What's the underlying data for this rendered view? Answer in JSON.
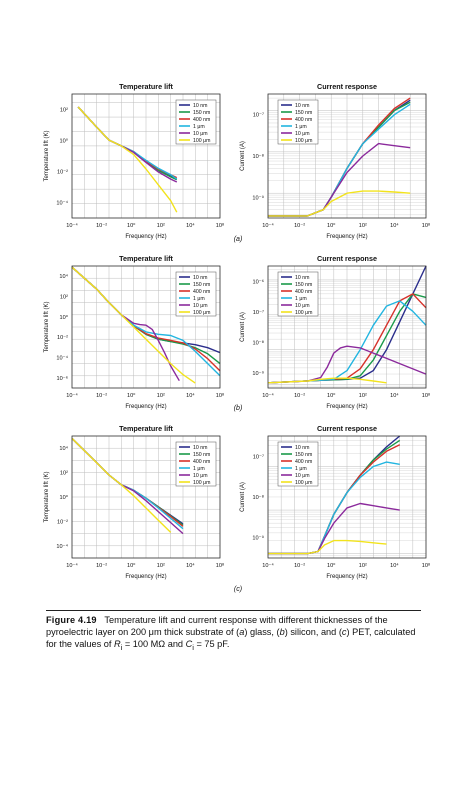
{
  "figure": {
    "caption_label": "Figure 4.19",
    "caption_parts": [
      "Temperature lift and current response with different thicknesses of the pyroelectric layer on 200 μm thick substrate of (",
      "a",
      ") glass, (",
      "b",
      ") silicon, and (",
      "c",
      ") PET, calculated for the values of ",
      "R",
      "i",
      " = 100 MΩ and ",
      "C",
      "i",
      " = 75 pF."
    ]
  },
  "legend_entries": [
    "10 nm",
    "150 nm",
    "400 nm",
    "1 μm",
    "10 μm",
    "100 μm"
  ],
  "series_colors": [
    "#2b2e8c",
    "#1a9a4a",
    "#d6322b",
    "#22b5e0",
    "#8b2a9c",
    "#f2e31c"
  ],
  "chart_data": [
    {
      "panel": "a",
      "side": "left",
      "type": "line",
      "title": "Temperature lift",
      "xlabel": "Frequency (Hz)",
      "ylabel": "Temperature lift (K)",
      "log_x": true,
      "log_y": true,
      "xlim": [
        -4,
        8
      ],
      "ylim": [
        -5,
        3.6
      ],
      "x_ticks": [
        "10⁻⁴",
        "10⁻²",
        "10⁰",
        "10²",
        "10⁴",
        "10⁸"
      ],
      "y_ticks": [
        "10⁻⁴",
        "10⁻²",
        "10⁰",
        "10²"
      ],
      "legend": "top-right",
      "grid": true,
      "series": [
        {
          "name": "10 nm",
          "x": [
            -3.5,
            -2,
            -1,
            0,
            1,
            2,
            3,
            4,
            4.5
          ],
          "y": [
            2.7,
            1.3,
            0.4,
            0,
            -0.4,
            -1.1,
            -1.7,
            -2.1,
            -2.3
          ]
        },
        {
          "name": "150 nm",
          "x": [
            -3.5,
            -2,
            -1,
            0,
            1,
            2,
            3,
            4,
            4.5
          ],
          "y": [
            2.7,
            1.3,
            0.4,
            0,
            -0.4,
            -1.1,
            -1.7,
            -2.15,
            -2.35
          ]
        },
        {
          "name": "400 nm",
          "x": [
            -3.5,
            -2,
            -1,
            0,
            1,
            2,
            3,
            4,
            4.5
          ],
          "y": [
            2.7,
            1.3,
            0.4,
            0,
            -0.4,
            -1.05,
            -1.6,
            -2.0,
            -2.2
          ]
        },
        {
          "name": "1 μm",
          "x": [
            -3.5,
            -2,
            -1,
            0,
            1,
            2,
            3,
            4,
            4.5
          ],
          "y": [
            2.7,
            1.3,
            0.4,
            0,
            -0.4,
            -1.0,
            -1.55,
            -2.0,
            -2.3
          ]
        },
        {
          "name": "10 μm",
          "x": [
            -3.5,
            -2,
            -1,
            0,
            1,
            2,
            3,
            4,
            4.5
          ],
          "y": [
            2.7,
            1.3,
            0.4,
            0,
            -0.45,
            -1.15,
            -1.8,
            -2.3,
            -2.5
          ]
        },
        {
          "name": "100 μm",
          "x": [
            -3.5,
            -2,
            -1,
            0,
            1,
            2,
            3,
            4,
            4.5
          ],
          "y": [
            2.7,
            1.3,
            0.4,
            0,
            -0.6,
            -1.6,
            -2.7,
            -3.8,
            -4.6
          ]
        }
      ]
    },
    {
      "panel": "a",
      "side": "right",
      "type": "line",
      "title": "Current response",
      "xlabel": "Frequency (Hz)",
      "ylabel": "Current (A)",
      "log_x": true,
      "log_y": true,
      "xlim": [
        -4,
        6
      ],
      "ylim": [
        -9.6,
        -6.6
      ],
      "x_ticks": [
        "10⁻⁴",
        "10⁻²",
        "10⁰",
        "10²",
        "10⁴",
        "10⁸"
      ],
      "y_ticks": [
        "10⁻⁹",
        "10⁻⁸",
        "10⁻⁷"
      ],
      "legend": "top-left",
      "grid": true,
      "series": [
        {
          "name": "10 nm",
          "x": [
            -4,
            -1.5,
            -0.5,
            0,
            1,
            2,
            3,
            4,
            5
          ],
          "y": [
            -9.55,
            -9.55,
            -9.4,
            -9.1,
            -8.4,
            -7.8,
            -7.4,
            -7.0,
            -6.75
          ]
        },
        {
          "name": "150 nm",
          "x": [
            -4,
            -1.5,
            -0.5,
            0,
            1,
            2,
            3,
            4,
            5
          ],
          "y": [
            -9.55,
            -9.55,
            -9.4,
            -9.1,
            -8.4,
            -7.8,
            -7.4,
            -7.0,
            -6.8
          ]
        },
        {
          "name": "400 nm",
          "x": [
            -4,
            -1.5,
            -0.5,
            0,
            1,
            2,
            3,
            4,
            5
          ],
          "y": [
            -9.55,
            -9.55,
            -9.4,
            -9.1,
            -8.4,
            -7.8,
            -7.35,
            -6.95,
            -6.7
          ]
        },
        {
          "name": "1 μm",
          "x": [
            -4,
            -1.5,
            -0.5,
            0,
            1,
            2,
            3,
            4,
            5
          ],
          "y": [
            -9.55,
            -9.55,
            -9.4,
            -9.1,
            -8.4,
            -7.8,
            -7.45,
            -7.1,
            -6.85
          ]
        },
        {
          "name": "10 μm",
          "x": [
            -4,
            -1.5,
            -0.5,
            0,
            1,
            2,
            3,
            4,
            5
          ],
          "y": [
            -9.55,
            -9.55,
            -9.4,
            -9.1,
            -8.5,
            -8.1,
            -7.8,
            -7.85,
            -7.9
          ]
        },
        {
          "name": "100 μm",
          "x": [
            -4,
            -1.5,
            -0.5,
            0,
            1,
            2,
            3,
            4,
            5
          ],
          "y": [
            -9.55,
            -9.55,
            -9.4,
            -9.2,
            -9.0,
            -8.95,
            -8.95,
            -8.97,
            -9.0
          ]
        }
      ]
    },
    {
      "panel": "b",
      "side": "left",
      "type": "line",
      "title": "Temperature lift",
      "xlabel": "Frequency (Hz)",
      "ylabel": "Temperature lift (K)",
      "log_x": true,
      "log_y": true,
      "xlim": [
        -4,
        8
      ],
      "ylim": [
        -6,
        4
      ],
      "x_ticks": [
        "10⁻⁴",
        "10⁻²",
        "10⁰",
        "10²",
        "10⁴",
        "10⁸"
      ],
      "y_ticks": [
        "10⁻⁶",
        "10⁻⁴",
        "10⁻²",
        "10⁰",
        "10²",
        "10⁴"
      ],
      "legend": "top-right",
      "grid": true,
      "series": [
        {
          "name": "10 nm",
          "x": [
            -4,
            -2,
            -1,
            0,
            1,
            2,
            3,
            4,
            5,
            6,
            7,
            8
          ],
          "y": [
            3.9,
            2.1,
            1.0,
            0,
            -0.9,
            -1.6,
            -2.0,
            -2.2,
            -2.3,
            -2.45,
            -2.7,
            -3.1
          ]
        },
        {
          "name": "150 nm",
          "x": [
            -4,
            -2,
            -1,
            0,
            1,
            2,
            3,
            4,
            5,
            6,
            7,
            8
          ],
          "y": [
            3.9,
            2.1,
            1.0,
            0,
            -0.9,
            -1.6,
            -2.0,
            -2.2,
            -2.4,
            -2.7,
            -3.2,
            -4.0
          ]
        },
        {
          "name": "400 nm",
          "x": [
            -4,
            -2,
            -1,
            0,
            1,
            2,
            3,
            4,
            5,
            6,
            7,
            8
          ],
          "y": [
            3.9,
            2.1,
            1.0,
            0,
            -0.9,
            -1.55,
            -1.9,
            -2.1,
            -2.3,
            -2.8,
            -3.6,
            -4.6
          ]
        },
        {
          "name": "1 μm",
          "x": [
            -4,
            -2,
            -1,
            0,
            1,
            2,
            3,
            4,
            5,
            6,
            7,
            8
          ],
          "y": [
            3.9,
            2.1,
            1.0,
            0,
            -0.85,
            -1.4,
            -1.6,
            -1.7,
            -2.1,
            -3.0,
            -4.0,
            -5.0
          ]
        },
        {
          "name": "10 μm",
          "x": [
            -4,
            -2,
            -1,
            0,
            1,
            1.5,
            2,
            2.5,
            3,
            3.5,
            4,
            4.7
          ],
          "y": [
            3.9,
            2.1,
            1.0,
            0,
            -0.7,
            -0.8,
            -0.85,
            -1.2,
            -2.1,
            -3.1,
            -4.2,
            -5.4
          ]
        },
        {
          "name": "100 μm",
          "x": [
            -4,
            -2,
            -1,
            0,
            1,
            2,
            3,
            4,
            5,
            6
          ],
          "y": [
            3.9,
            2.1,
            1.0,
            0,
            -1.0,
            -2.0,
            -3.0,
            -4.0,
            -4.9,
            -5.6
          ]
        }
      ]
    },
    {
      "panel": "b",
      "side": "right",
      "type": "line",
      "title": "Current response",
      "xlabel": "Frequency (Hz)",
      "ylabel": "Current (A)",
      "log_x": true,
      "log_y": true,
      "xlim": [
        -4,
        8
      ],
      "ylim": [
        -9.1,
        -5.6
      ],
      "x_ticks": [
        "10⁻⁴",
        "10⁻²",
        "10⁰",
        "10²",
        "10⁴",
        "10⁸"
      ],
      "y_ticks": [
        "10⁻⁹",
        "10⁻⁸",
        "10⁻⁷",
        "10⁻⁶"
      ],
      "legend": "top-left",
      "grid": true,
      "series": [
        {
          "name": "10 nm",
          "x": [
            -4,
            0,
            2,
            3,
            4,
            5,
            6,
            7,
            8
          ],
          "y": [
            -8.95,
            -8.88,
            -8.85,
            -8.82,
            -8.6,
            -8.0,
            -7.2,
            -6.4,
            -5.6
          ]
        },
        {
          "name": "150 nm",
          "x": [
            -4,
            0,
            2,
            3,
            4,
            5,
            6,
            7,
            8
          ],
          "y": [
            -8.95,
            -8.88,
            -8.85,
            -8.75,
            -8.3,
            -7.6,
            -6.9,
            -6.4,
            -6.5
          ]
        },
        {
          "name": "400 nm",
          "x": [
            -4,
            0,
            2,
            3,
            4,
            5,
            6,
            7,
            8
          ],
          "y": [
            -8.95,
            -8.88,
            -8.82,
            -8.55,
            -8.0,
            -7.3,
            -6.6,
            -6.4,
            -6.8
          ]
        },
        {
          "name": "1 μm",
          "x": [
            -4,
            0,
            1,
            2,
            3,
            4,
            5,
            6,
            7,
            8
          ],
          "y": [
            -8.95,
            -8.88,
            -8.85,
            -8.6,
            -8.0,
            -7.3,
            -6.75,
            -6.6,
            -6.9,
            -7.3
          ]
        },
        {
          "name": "10 μm",
          "x": [
            -4,
            -1,
            0,
            0.5,
            1,
            1.5,
            2,
            3,
            4,
            6,
            8
          ],
          "y": [
            -8.95,
            -8.9,
            -8.8,
            -8.5,
            -8.1,
            -7.95,
            -7.9,
            -7.95,
            -8.1,
            -8.4,
            -8.7
          ]
        },
        {
          "name": "100 μm",
          "x": [
            -4,
            -1,
            0,
            1,
            2,
            3,
            4,
            5
          ],
          "y": [
            -8.95,
            -8.9,
            -8.85,
            -8.82,
            -8.82,
            -8.85,
            -8.9,
            -8.95
          ]
        }
      ]
    },
    {
      "panel": "c",
      "side": "left",
      "type": "line",
      "title": "Temperature lift",
      "xlabel": "Frequency (Hz)",
      "ylabel": "Temperature lift (K)",
      "log_x": true,
      "log_y": true,
      "xlim": [
        -4,
        8
      ],
      "ylim": [
        -6,
        4
      ],
      "x_ticks": [
        "10⁻⁴",
        "10⁻²",
        "10⁰",
        "10²",
        "10⁴",
        "10⁸"
      ],
      "y_ticks": [
        "10⁻⁴",
        "10⁻²",
        "10⁰",
        "10²",
        "10⁴"
      ],
      "legend": "top-right",
      "grid": true,
      "series": [
        {
          "name": "10 nm",
          "x": [
            -4,
            -2,
            -1,
            0,
            1,
            2,
            3,
            4,
            5
          ],
          "y": [
            3.8,
            1.8,
            0.8,
            0,
            -0.45,
            -1.1,
            -1.8,
            -2.5,
            -3.2
          ]
        },
        {
          "name": "150 nm",
          "x": [
            -4,
            -2,
            -1,
            0,
            1,
            2,
            3,
            4,
            5
          ],
          "y": [
            3.8,
            1.8,
            0.8,
            0,
            -0.45,
            -1.1,
            -1.8,
            -2.55,
            -3.3
          ]
        },
        {
          "name": "400 nm",
          "x": [
            -4,
            -2,
            -1,
            0,
            1,
            2,
            3,
            4,
            5
          ],
          "y": [
            3.8,
            1.8,
            0.8,
            0,
            -0.45,
            -1.1,
            -1.85,
            -2.6,
            -3.4
          ]
        },
        {
          "name": "1 μm",
          "x": [
            -4,
            -2,
            -1,
            0,
            1,
            2,
            3,
            4,
            5
          ],
          "y": [
            3.8,
            1.8,
            0.8,
            0,
            -0.45,
            -1.1,
            -1.9,
            -2.75,
            -3.6
          ]
        },
        {
          "name": "10 μm",
          "x": [
            -4,
            -2,
            -1,
            0,
            1,
            2,
            3,
            4,
            5
          ],
          "y": [
            3.8,
            1.8,
            0.8,
            0,
            -0.5,
            -1.3,
            -2.2,
            -3.1,
            -4.0
          ]
        },
        {
          "name": "100 μm",
          "x": [
            -4,
            -2,
            -1,
            0,
            1,
            2,
            3,
            4
          ],
          "y": [
            3.8,
            1.8,
            0.8,
            0,
            -0.9,
            -1.9,
            -2.9,
            -3.9
          ]
        }
      ]
    },
    {
      "panel": "c",
      "side": "right",
      "type": "line",
      "title": "Current response",
      "xlabel": "Frequency (Hz)",
      "ylabel": "Current (A)",
      "log_x": true,
      "log_y": true,
      "xlim": [
        -4,
        8
      ],
      "ylim": [
        -9.1,
        -6.3
      ],
      "x_ticks": [
        "10⁻⁴",
        "10⁻²",
        "10⁰",
        "10²",
        "10⁴",
        "10⁸"
      ],
      "y_ticks": [
        "10⁻⁹",
        "10⁻⁸",
        "10⁻⁷"
      ],
      "legend": "top-left",
      "grid": true,
      "series": [
        {
          "name": "10 nm",
          "x": [
            -4,
            -1,
            -0.2,
            0.3,
            1,
            2,
            3,
            4,
            5,
            6
          ],
          "y": [
            -9.0,
            -9.0,
            -8.95,
            -8.6,
            -8.1,
            -7.6,
            -7.2,
            -6.85,
            -6.55,
            -6.3
          ]
        },
        {
          "name": "150 nm",
          "x": [
            -4,
            -1,
            -0.2,
            0.3,
            1,
            2,
            3,
            4,
            5,
            6
          ],
          "y": [
            -9.0,
            -9.0,
            -8.95,
            -8.6,
            -8.1,
            -7.6,
            -7.2,
            -6.85,
            -6.6,
            -6.4
          ]
        },
        {
          "name": "400 nm",
          "x": [
            -4,
            -1,
            -0.2,
            0.3,
            1,
            2,
            3,
            4,
            5,
            6
          ],
          "y": [
            -9.0,
            -9.0,
            -8.95,
            -8.6,
            -8.1,
            -7.6,
            -7.2,
            -6.9,
            -6.65,
            -6.5
          ]
        },
        {
          "name": "1 μm",
          "x": [
            -4,
            -1,
            -0.2,
            0.3,
            1,
            2,
            3,
            4,
            5,
            6
          ],
          "y": [
            -9.0,
            -9.0,
            -8.95,
            -8.6,
            -8.1,
            -7.6,
            -7.25,
            -7.0,
            -6.9,
            -6.95
          ]
        },
        {
          "name": "10 μm",
          "x": [
            -4,
            -1,
            -0.2,
            0.3,
            1,
            2,
            3,
            4,
            5,
            6
          ],
          "y": [
            -9.0,
            -9.0,
            -8.95,
            -8.65,
            -8.3,
            -7.95,
            -7.85,
            -7.9,
            -7.95,
            -8.0
          ]
        },
        {
          "name": "100 μm",
          "x": [
            -4,
            -1,
            -0.2,
            0.3,
            1,
            2,
            3,
            4,
            5
          ],
          "y": [
            -9.0,
            -9.0,
            -8.95,
            -8.8,
            -8.7,
            -8.7,
            -8.72,
            -8.75,
            -8.78
          ]
        }
      ]
    }
  ],
  "panel_labels": [
    "(a)",
    "(b)",
    "(c)"
  ]
}
